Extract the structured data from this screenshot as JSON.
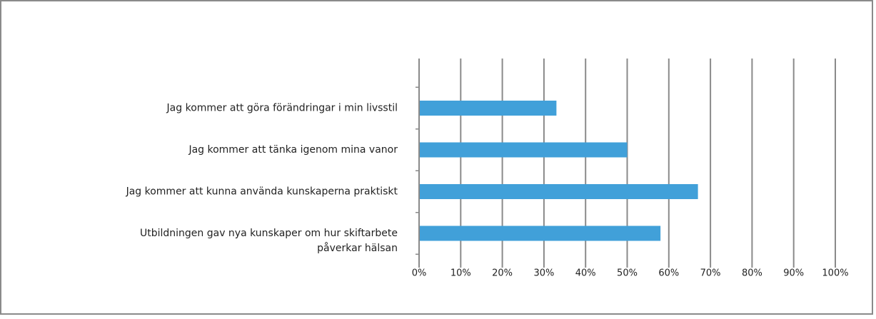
{
  "chart_data": {
    "type": "bar",
    "orientation": "horizontal",
    "categories": [
      "Jag kommer att göra förändringar  i min livsstil",
      "Jag kommer att tänka igenom mina vanor",
      "Jag kommer att kunna använda kunskaperna praktiskt",
      "Utbildningen gav nya kunskaper om hur skiftarbete påverkar hälsan"
    ],
    "values": [
      33,
      50,
      67,
      58
    ],
    "color": "#41a0d9",
    "xlim": [
      0,
      100
    ],
    "xticks": [
      {
        "value": 0,
        "label": "0%"
      },
      {
        "value": 10,
        "label": "10%"
      },
      {
        "value": 20,
        "label": "20%"
      },
      {
        "value": 30,
        "label": "30%"
      },
      {
        "value": 40,
        "label": "40%"
      },
      {
        "value": 50,
        "label": "50%"
      },
      {
        "value": 60,
        "label": "60%"
      },
      {
        "value": 70,
        "label": "70%"
      },
      {
        "value": 80,
        "label": "80%"
      },
      {
        "value": 90,
        "label": "90%"
      },
      {
        "value": 100,
        "label": "100%"
      }
    ],
    "grid": true
  }
}
